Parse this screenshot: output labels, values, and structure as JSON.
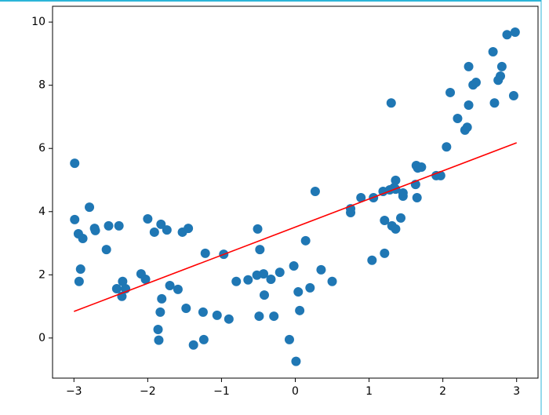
{
  "chart_data": {
    "type": "scatter",
    "x": [
      -2.99,
      -2.99,
      -2.94,
      -2.88,
      -2.91,
      -2.93,
      -2.79,
      -2.72,
      -2.71,
      -2.53,
      -2.56,
      -2.39,
      -2.42,
      -2.34,
      -2.35,
      -2.3,
      -2.09,
      -2.03,
      -2.0,
      -1.91,
      -1.82,
      -1.74,
      -1.53,
      -1.45,
      -1.7,
      -1.59,
      -1.81,
      -1.83,
      -1.86,
      -1.85,
      -1.48,
      -1.38,
      -1.25,
      -1.24,
      -1.22,
      -1.06,
      -0.97,
      -0.9,
      -0.8,
      -0.64,
      -0.52,
      -0.51,
      -0.48,
      -0.49,
      -0.43,
      -0.42,
      -0.33,
      -0.29,
      -0.21,
      -0.08,
      -0.02,
      0.01,
      0.04,
      0.06,
      0.14,
      0.2,
      0.27,
      0.35,
      0.5,
      0.75,
      0.75,
      0.89,
      1.04,
      1.06,
      1.19,
      1.21,
      1.21,
      1.28,
      1.3,
      1.31,
      1.34,
      1.36,
      1.36,
      1.36,
      1.43,
      1.46,
      1.46,
      1.63,
      1.64,
      1.65,
      1.66,
      1.71,
      1.91,
      1.97,
      2.05,
      2.1,
      2.2,
      2.3,
      2.33,
      2.35,
      2.35,
      2.41,
      2.45,
      2.68,
      2.7,
      2.75,
      2.78,
      2.8,
      2.87,
      2.98,
      2.96
    ],
    "y": [
      5.53,
      3.75,
      3.3,
      3.15,
      2.18,
      1.79,
      4.14,
      3.47,
      3.4,
      3.55,
      2.8,
      3.55,
      1.56,
      1.79,
      1.32,
      1.56,
      2.03,
      1.86,
      3.77,
      3.35,
      3.6,
      3.42,
      3.35,
      3.47,
      1.66,
      1.54,
      1.24,
      0.82,
      0.27,
      -0.07,
      0.94,
      -0.22,
      0.82,
      -0.05,
      2.68,
      0.72,
      2.65,
      0.6,
      1.79,
      1.84,
      1.99,
      3.45,
      2.8,
      0.69,
      2.03,
      1.36,
      1.86,
      0.69,
      2.08,
      -0.05,
      2.28,
      -0.74,
      1.46,
      0.87,
      3.08,
      1.59,
      4.64,
      2.16,
      1.79,
      3.97,
      4.09,
      4.44,
      2.46,
      4.44,
      4.64,
      3.72,
      2.68,
      4.69,
      7.44,
      3.55,
      4.76,
      4.71,
      3.45,
      4.99,
      3.8,
      4.49,
      4.59,
      4.86,
      5.46,
      4.44,
      5.38,
      5.41,
      5.14,
      5.14,
      6.05,
      7.77,
      6.95,
      6.58,
      6.67,
      8.59,
      7.37,
      8.01,
      8.09,
      9.06,
      7.44,
      8.16,
      8.29,
      8.59,
      9.6,
      9.68,
      7.67
    ],
    "color": "#1f77b4",
    "fit_line": {
      "x": [
        -3,
        3
      ],
      "y": [
        0.84,
        6.18
      ],
      "color": "red"
    },
    "xlim": [
      -3.29,
      3.29
    ],
    "ylim": [
      -1.27,
      10.5
    ],
    "xticks": [
      {
        "value": -3,
        "label": "−3"
      },
      {
        "value": -2,
        "label": "−2"
      },
      {
        "value": -1,
        "label": "−1"
      },
      0,
      1,
      2,
      3
    ],
    "yticks": [
      0,
      2,
      4,
      6,
      8,
      10
    ]
  }
}
